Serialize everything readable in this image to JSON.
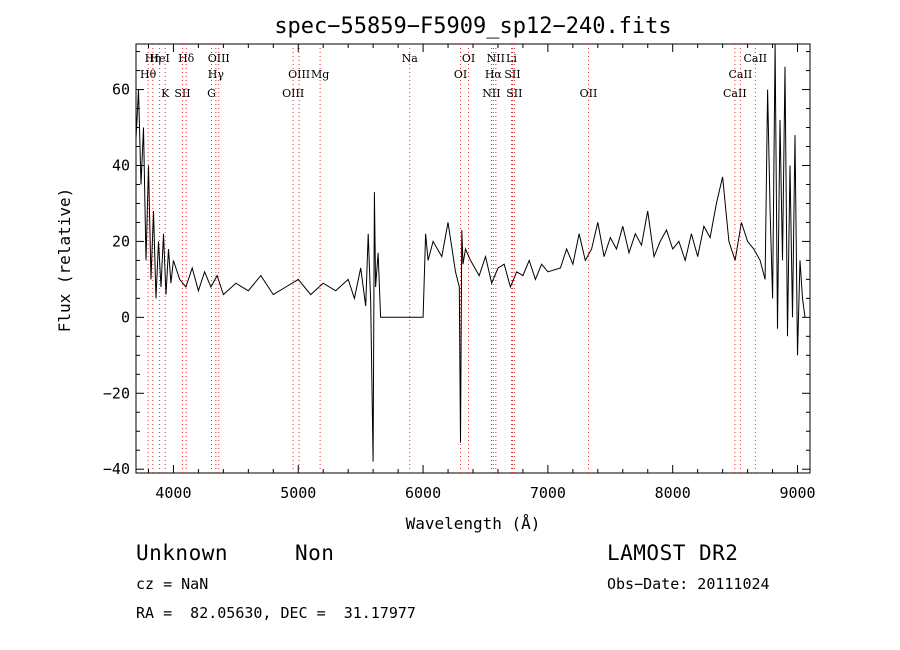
{
  "chart_data": {
    "type": "line",
    "title": "spec−55859−F5909_sp12−240.fits",
    "xlabel": "Wavelength (Å)",
    "ylabel": "Flux (relative)",
    "xlim": [
      3700,
      9100
    ],
    "ylim": [
      -41,
      72
    ],
    "xticks": [
      4000,
      5000,
      6000,
      7000,
      8000,
      9000
    ],
    "yticks": [
      -40,
      -20,
      0,
      20,
      40,
      60
    ],
    "ytick_labels": [
      "−40",
      "−20",
      "0",
      "20",
      "40",
      "60"
    ],
    "line_color": "#000000",
    "marker_color": "#cc3333",
    "series": [
      {
        "x": [
          3700,
          3720,
          3740,
          3760,
          3780,
          3800,
          3820,
          3840,
          3860,
          3880,
          3900,
          3920,
          3940,
          3960,
          3980,
          4000,
          4050,
          4100,
          4150,
          4200,
          4250,
          4300,
          4350,
          4400,
          4500,
          4600,
          4700,
          4800,
          4900,
          5000,
          5100,
          5200,
          5300,
          5400,
          5450,
          5500,
          5540,
          5560,
          5580,
          5600,
          5610,
          5620,
          5640,
          5660,
          5700,
          5800,
          5900,
          6000,
          6020,
          6040,
          6080,
          6150,
          6200,
          6260,
          6290,
          6300,
          6310,
          6320,
          6340,
          6380,
          6450,
          6500,
          6550,
          6600,
          6650,
          6700,
          6750,
          6800,
          6850,
          6900,
          6950,
          7000,
          7100,
          7150,
          7200,
          7250,
          7300,
          7350,
          7400,
          7450,
          7500,
          7550,
          7600,
          7650,
          7700,
          7750,
          7800,
          7850,
          7900,
          7950,
          8000,
          8050,
          8100,
          8150,
          8200,
          8250,
          8300,
          8350,
          8400,
          8450,
          8500,
          8550,
          8600,
          8650,
          8700,
          8740,
          8760,
          8780,
          8800,
          8820,
          8840,
          8860,
          8880,
          8900,
          8920,
          8940,
          8960,
          8980,
          9000,
          9020,
          9040,
          9060
        ],
        "values": [
          47,
          60,
          35,
          50,
          15,
          40,
          10,
          28,
          5,
          20,
          8,
          22,
          6,
          18,
          9,
          15,
          10,
          8,
          13,
          7,
          12,
          8,
          11,
          6,
          9,
          7,
          11,
          6,
          8,
          10,
          6,
          9,
          7,
          10,
          5,
          13,
          3,
          22,
          4,
          -38,
          33,
          8,
          17,
          0,
          0,
          0,
          0,
          0,
          22,
          15,
          20,
          16,
          25,
          12,
          8,
          -33,
          23,
          14,
          18,
          15,
          11,
          16,
          9,
          13,
          14,
          8,
          12,
          11,
          15,
          10,
          14,
          12,
          13,
          18,
          14,
          22,
          15,
          18,
          25,
          16,
          21,
          18,
          24,
          17,
          22,
          19,
          28,
          16,
          20,
          23,
          18,
          20,
          15,
          22,
          16,
          24,
          21,
          30,
          37,
          20,
          15,
          25,
          20,
          18,
          15,
          10,
          60,
          28,
          5,
          72,
          -3,
          52,
          15,
          66,
          -5,
          40,
          0,
          48,
          -10,
          15,
          5,
          0
        ]
      }
    ],
    "lines": {
      "upper": [
        {
          "label": "Hη",
          "x": 3835
        },
        {
          "label": "Hθ",
          "x": 3797
        },
        {
          "label": "K",
          "x": 3934
        },
        {
          "label": "HeI",
          "x": 3889
        },
        {
          "label": "SII",
          "x": 4072
        },
        {
          "label": "Hδ",
          "x": 4102
        },
        {
          "label": "Hγ",
          "x": 4340
        },
        {
          "label": "G",
          "x": 4305
        },
        {
          "label": "OIII",
          "x": 4363
        },
        {
          "label": "OIII",
          "x": 5007
        },
        {
          "label": "OIII",
          "x": 4959
        },
        {
          "label": "Mg",
          "x": 5175
        },
        {
          "label": "Na",
          "x": 5893
        },
        {
          "label": "OI",
          "x": 6300
        },
        {
          "label": "OI",
          "x": 6364
        },
        {
          "label": "Hα",
          "x": 6563
        },
        {
          "label": "NII",
          "x": 6583
        },
        {
          "label": "SII",
          "x": 6716
        },
        {
          "label": "Li",
          "x": 6708
        },
        {
          "label": "NII",
          "x": 6548
        },
        {
          "label": "SII",
          "x": 6731
        },
        {
          "label": "OII",
          "x": 7325
        },
        {
          "label": "CaII",
          "x": 8662
        },
        {
          "label": "CaII",
          "x": 8542
        },
        {
          "label": "CaII",
          "x": 8498
        }
      ]
    }
  },
  "info": {
    "class_text": "Unknown",
    "subclass_text": "Non",
    "cz_text": "cz = NaN",
    "radec_text": "RA =  82.05630, DEC =  31.17977",
    "survey_text": "LAMOST DR2",
    "obsdate_text": "Obs−Date: 20111024"
  }
}
